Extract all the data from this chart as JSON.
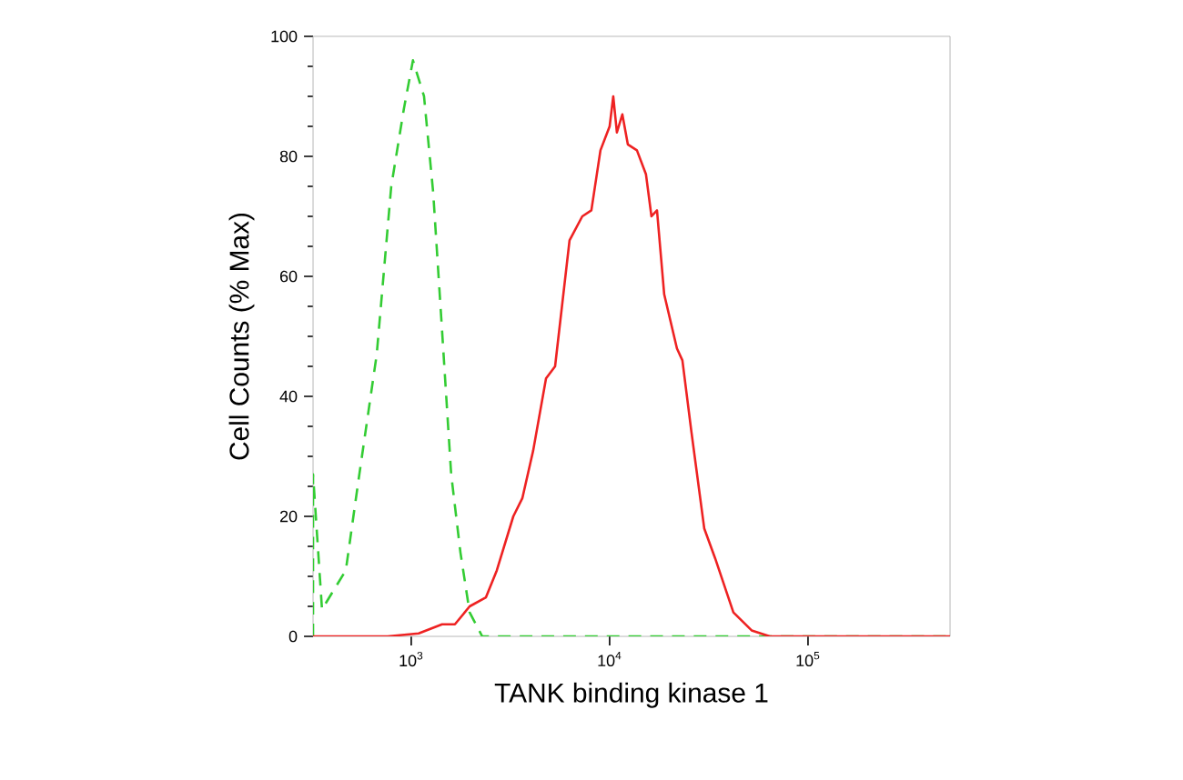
{
  "chart_data": {
    "type": "line",
    "xlabel": "TANK binding kinase 1",
    "ylabel": "Cell Counts (% Max)",
    "log": "x",
    "grid": false,
    "legend": false,
    "marker": "none",
    "xlim": [
      320,
      520000
    ],
    "ylim": [
      0,
      100
    ],
    "xticks": [
      {
        "value": 1000,
        "label": "10$^{3}$"
      },
      {
        "value": 10000,
        "label": "10$^{4}$"
      },
      {
        "value": 100000,
        "label": "10$^{5}$"
      }
    ],
    "yticks": [
      0,
      20,
      40,
      60,
      80,
      100
    ],
    "series": [
      {
        "color": "#33cc33",
        "line_style": "dashed",
        "x": [
          320,
          320,
          355,
          468,
          542,
          670,
          793,
          919,
          1020,
          1160,
          1290,
          1430,
          1590,
          1770,
          1970,
          2280,
          520000
        ],
        "values": [
          0,
          27,
          4.5,
          11,
          26,
          47,
          75,
          88,
          96,
          90,
          74,
          51,
          27,
          14,
          4,
          0,
          0
        ]
      },
      {
        "color": "#ee2222",
        "line_style": "solid",
        "x": [
          320,
          760,
          1090,
          1430,
          1660,
          1970,
          2380,
          2700,
          3270,
          3630,
          4120,
          4780,
          5310,
          6280,
          7280,
          8090,
          8990,
          10000,
          10430,
          10880,
          11590,
          12350,
          13730,
          15250,
          16250,
          17330,
          18840,
          21840,
          23270,
          25860,
          29980,
          34040,
          42050,
          51960,
          64180,
          520000
        ],
        "values": [
          0,
          0,
          0.5,
          2,
          2,
          5,
          6.5,
          11,
          20,
          23,
          31,
          43,
          45,
          66,
          70,
          71,
          81,
          85,
          90,
          84,
          87,
          82,
          81,
          77,
          70,
          71,
          57,
          48,
          46,
          34,
          18,
          13,
          4,
          1,
          0,
          0
        ]
      }
    ]
  }
}
